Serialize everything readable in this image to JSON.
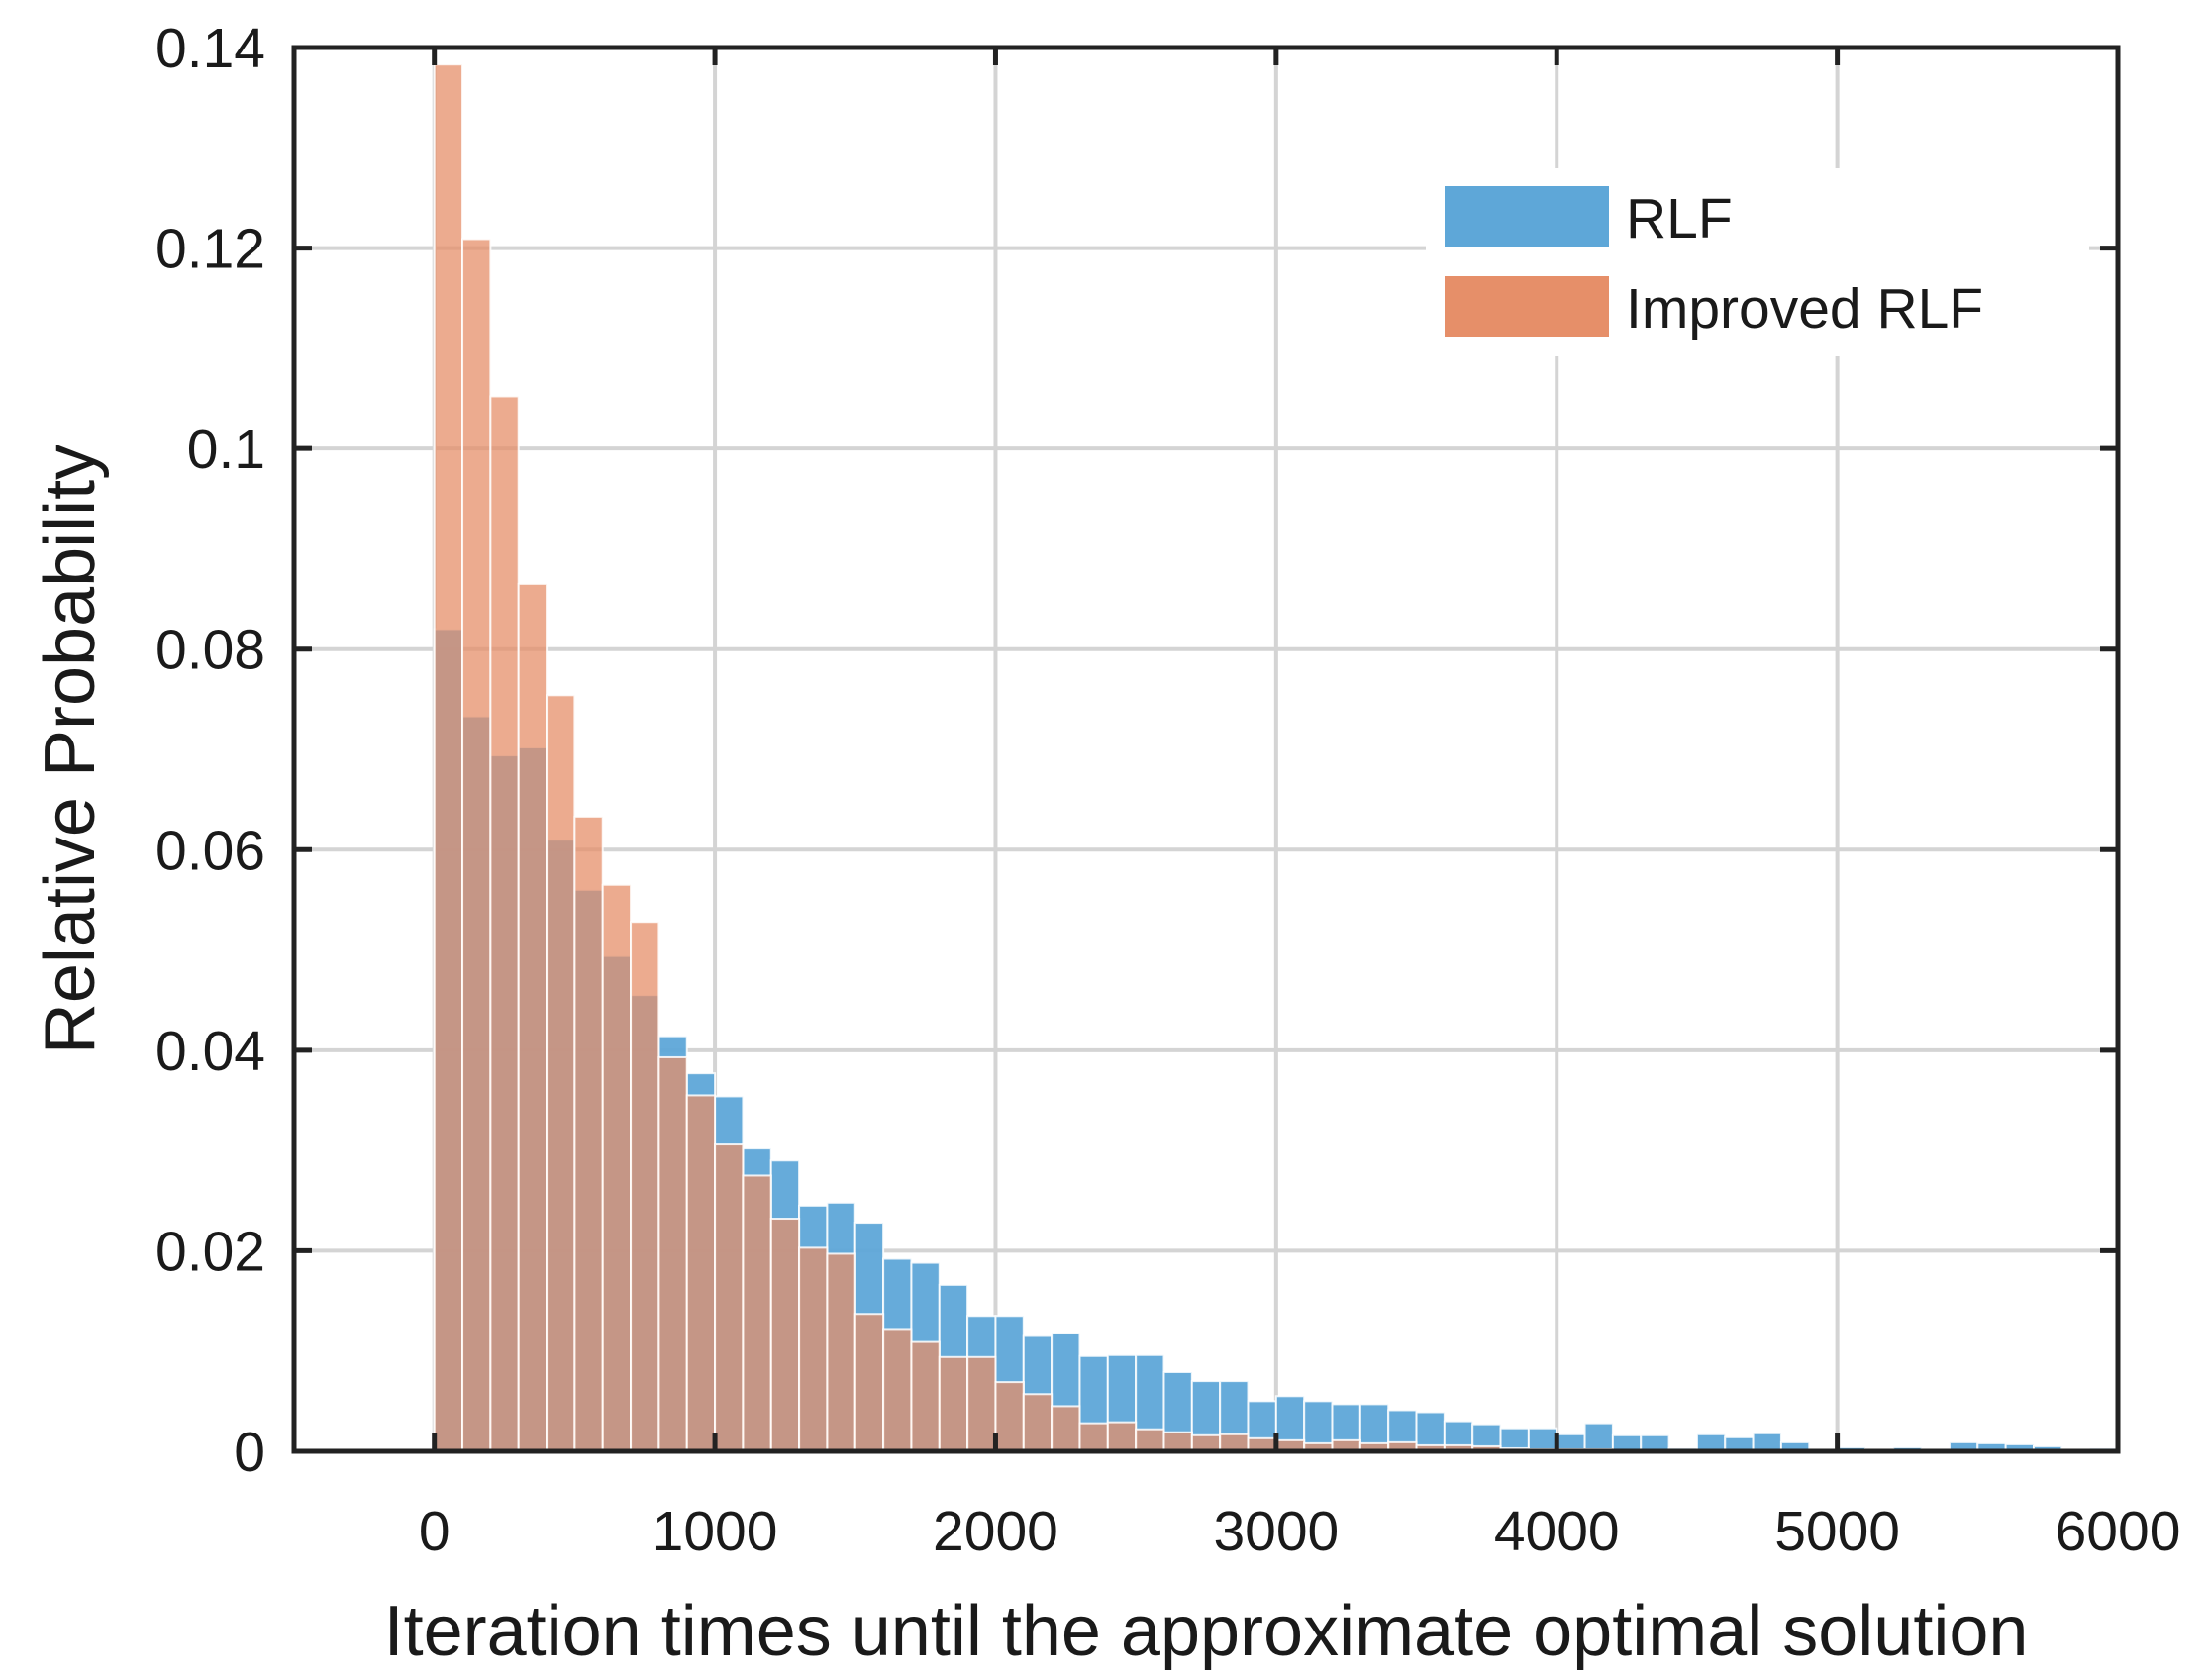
{
  "chart_data": {
    "type": "bar",
    "subtype": "overlapping-histogram",
    "xlabel": "Iteration times until the approximate optimal solution",
    "ylabel": "Relative Probability",
    "xlim": [
      -500,
      6000
    ],
    "ylim": [
      0,
      0.14
    ],
    "xticks": [
      0,
      1000,
      2000,
      3000,
      4000,
      5000,
      6000
    ],
    "xtick_labels": [
      "0",
      "1000",
      "2000",
      "3000",
      "4000",
      "5000",
      "6000"
    ],
    "yticks": [
      0,
      0.02,
      0.04,
      0.06,
      0.08,
      0.1,
      0.12,
      0.14
    ],
    "ytick_labels": [
      "0",
      "0.02",
      "0.04",
      "0.06",
      "0.08",
      "0.1",
      "0.12",
      "0.14"
    ],
    "grid": true,
    "legend_position": "top-right",
    "bin_width": 100,
    "bin_start": 0,
    "series": [
      {
        "name": "RLF",
        "color": "#5ea7d8",
        "values": [
          0.082,
          0.0733,
          0.0694,
          0.0702,
          0.061,
          0.056,
          0.0494,
          0.0455,
          0.0414,
          0.0377,
          0.0354,
          0.0302,
          0.029,
          0.0245,
          0.0248,
          0.0228,
          0.0192,
          0.0188,
          0.0166,
          0.0135,
          0.0135,
          0.0115,
          0.0118,
          0.0095,
          0.0096,
          0.0096,
          0.0079,
          0.007,
          0.007,
          0.005,
          0.0055,
          0.005,
          0.0047,
          0.0047,
          0.0041,
          0.0039,
          0.003,
          0.0027,
          0.0023,
          0.0023,
          0.0017,
          0.0028,
          0.0016,
          0.0016,
          0.0003,
          0.0017,
          0.0014,
          0.0018,
          0.0009,
          0.0,
          0.0004,
          0.0002,
          0.0004,
          0.0,
          0.0009,
          0.0008,
          0.0007,
          0.0005,
          0.0,
          0.0003
        ]
      },
      {
        "name": "Improved RLF",
        "color": "#e68f69",
        "values": [
          0.1383,
          0.1209,
          0.1052,
          0.0865,
          0.0754,
          0.0633,
          0.0565,
          0.0528,
          0.0393,
          0.0355,
          0.0306,
          0.0275,
          0.0232,
          0.0203,
          0.0197,
          0.0137,
          0.0122,
          0.0109,
          0.0094,
          0.0094,
          0.0069,
          0.0057,
          0.0045,
          0.0028,
          0.0029,
          0.0022,
          0.0019,
          0.0016,
          0.0017,
          0.0013,
          0.0011,
          0.0008,
          0.0011,
          0.0008,
          0.0009,
          0.0006,
          0.0006,
          0.0005,
          0.0003,
          0.0002,
          0.0002,
          0.0002,
          0.0001,
          0.0001,
          0.0001,
          0.0001,
          0.0001,
          0.0,
          0.0,
          0.0,
          0.0,
          0.0,
          0.0,
          0.0,
          0.0,
          0.0,
          0.0,
          0.0,
          0.0,
          0.0
        ]
      }
    ]
  }
}
